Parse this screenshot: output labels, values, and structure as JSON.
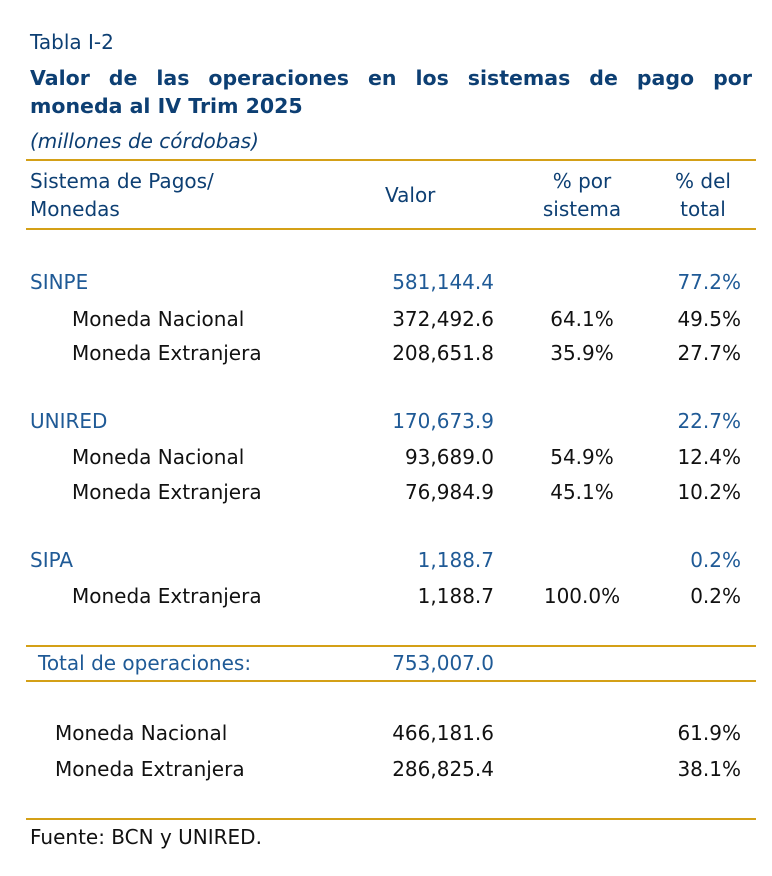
{
  "table_label": "Tabla I-2",
  "title_line1": "Valor de las operaciones en los sistemas de pago por",
  "title_line2": "moneda al IV Trim 2025",
  "units": "(millones de córdobas)",
  "headers": {
    "system_line1": "Sistema de Pagos/",
    "system_line2": "Monedas",
    "value": "Valor",
    "pct_system_line1": "% por",
    "pct_system_line2": "sistema",
    "pct_total_line1": "% del",
    "pct_total_line2": "total"
  },
  "groups": [
    {
      "name": "SINPE",
      "value": "581,144.4",
      "pct_total": "77.2%",
      "rows": [
        {
          "label": "Moneda Nacional",
          "value": "372,492.6",
          "pct_system": "64.1%",
          "pct_total": "49.5%"
        },
        {
          "label": "Moneda Extranjera",
          "value": "208,651.8",
          "pct_system": "35.9%",
          "pct_total": "27.7%"
        }
      ]
    },
    {
      "name": "UNIRED",
      "value": "170,673.9",
      "pct_total": "22.7%",
      "rows": [
        {
          "label": "Moneda Nacional",
          "value": "93,689.0",
          "pct_system": "54.9%",
          "pct_total": "12.4%"
        },
        {
          "label": "Moneda Extranjera",
          "value": "76,984.9",
          "pct_system": "45.1%",
          "pct_total": "10.2%"
        }
      ]
    },
    {
      "name": "SIPA",
      "value": "1,188.7",
      "pct_total": "0.2%",
      "rows": [
        {
          "label": "Moneda Extranjera",
          "value": "1,188.7",
          "pct_system": "100.0%",
          "pct_total": "0.2%"
        }
      ]
    }
  ],
  "total": {
    "label": "Total de operaciones:",
    "value": "753,007.0"
  },
  "summary": [
    {
      "label": "Moneda Nacional",
      "value": "466,181.6",
      "pct_total": "61.9%"
    },
    {
      "label": "Moneda Extranjera",
      "value": "286,825.4",
      "pct_total": "38.1%"
    }
  ],
  "source": "Fuente: BCN y UNIRED."
}
